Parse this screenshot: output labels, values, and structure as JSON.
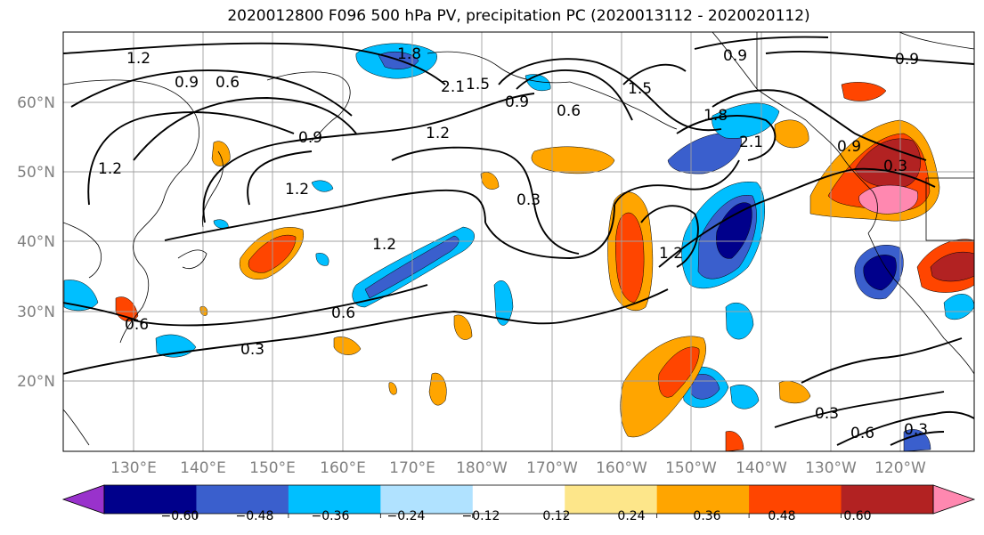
{
  "title": "2020012800 F096 500 hPa PV, precipitation PC (2020013112 - 2020020112)",
  "lat_labels": [
    "60°N",
    "50°N",
    "40°N",
    "30°N",
    "20°N"
  ],
  "lon_labels": [
    "130°E",
    "140°E",
    "150°E",
    "160°E",
    "170°E",
    "180°W",
    "170°W",
    "160°W",
    "150°W",
    "140°W",
    "130°W",
    "120°W"
  ],
  "contour_labels": [
    "1.2",
    "0.9",
    "0.6",
    "1.8",
    "2.1",
    "1.5",
    "0.9",
    "0.6",
    "0.9",
    "0.9",
    "1.2",
    "1.2",
    "1.2",
    "0.9",
    "1.2",
    "0.6",
    "0.3",
    "0.3",
    "1.2",
    "1.8",
    "2.1",
    "1.5",
    "0.3",
    "0.9",
    "0.3",
    "0.6",
    "0.3",
    "0.6"
  ],
  "colorbar": {
    "ticks": [
      "−0.60",
      "−0.48",
      "−0.36",
      "−0.24",
      "−0.12",
      "0.12",
      "0.24",
      "0.36",
      "0.48",
      "0.60"
    ],
    "colors": [
      "#9932cc",
      "#00008b",
      "#3a5fcd",
      "#00bfff",
      "#b0e2ff",
      "#ffffff",
      "#fde68a",
      "#ffa500",
      "#ff4500",
      "#b22222",
      "#ff88b0"
    ]
  }
}
